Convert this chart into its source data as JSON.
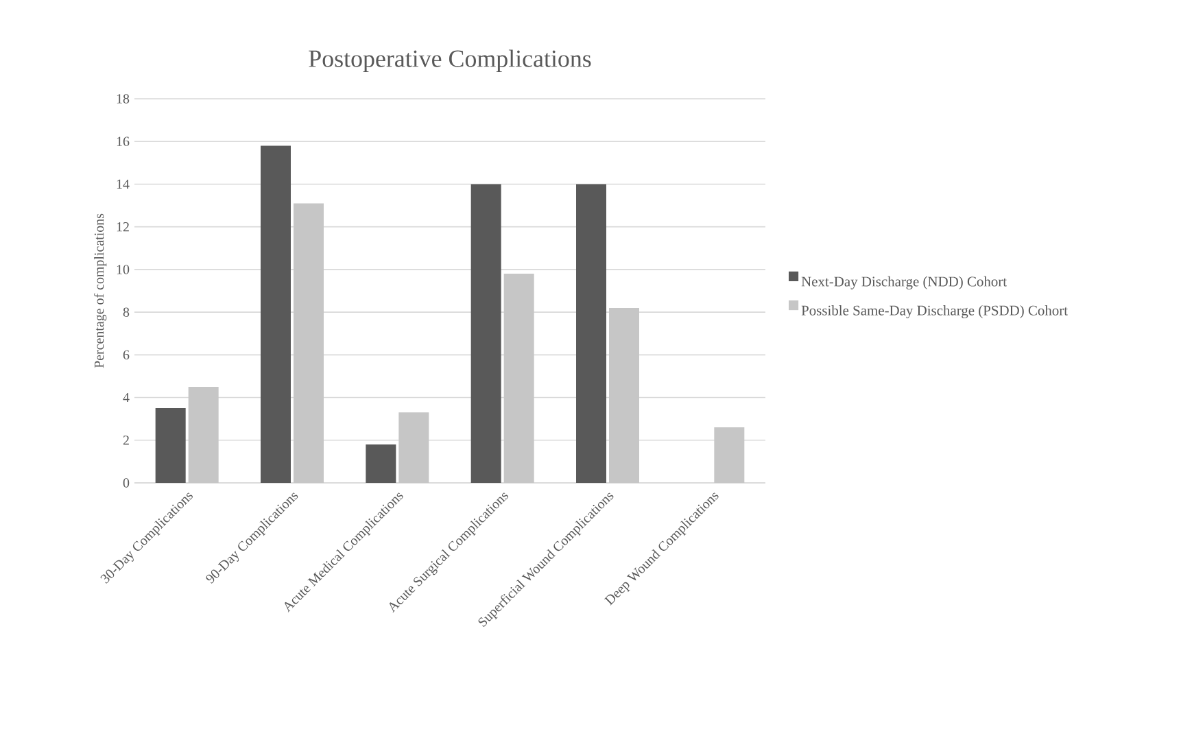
{
  "chart_data": {
    "type": "bar",
    "title": "Postoperative Complications",
    "ylabel": "Percentage of complications",
    "categories": [
      "30-Day Complications",
      "90-Day Complications",
      "Acute Medical Complications",
      "Acute Surgical Complications",
      "Superficial Wound Complications",
      "Deep Wound Complications"
    ],
    "series": [
      {
        "name": "Next-Day Discharge (NDD) Cohort",
        "color": "#595959",
        "values": [
          3.5,
          15.8,
          1.8,
          14.0,
          14.0,
          0
        ]
      },
      {
        "name": "Possible Same-Day Discharge (PSDD) Cohort",
        "color": "#c6c6c6",
        "values": [
          4.5,
          13.1,
          3.3,
          9.8,
          8.2,
          2.6
        ]
      }
    ],
    "ylim": [
      0,
      18
    ],
    "yticks": [
      0,
      2,
      4,
      6,
      8,
      10,
      12,
      14,
      16,
      18
    ],
    "grid": "y",
    "legend": "right"
  }
}
